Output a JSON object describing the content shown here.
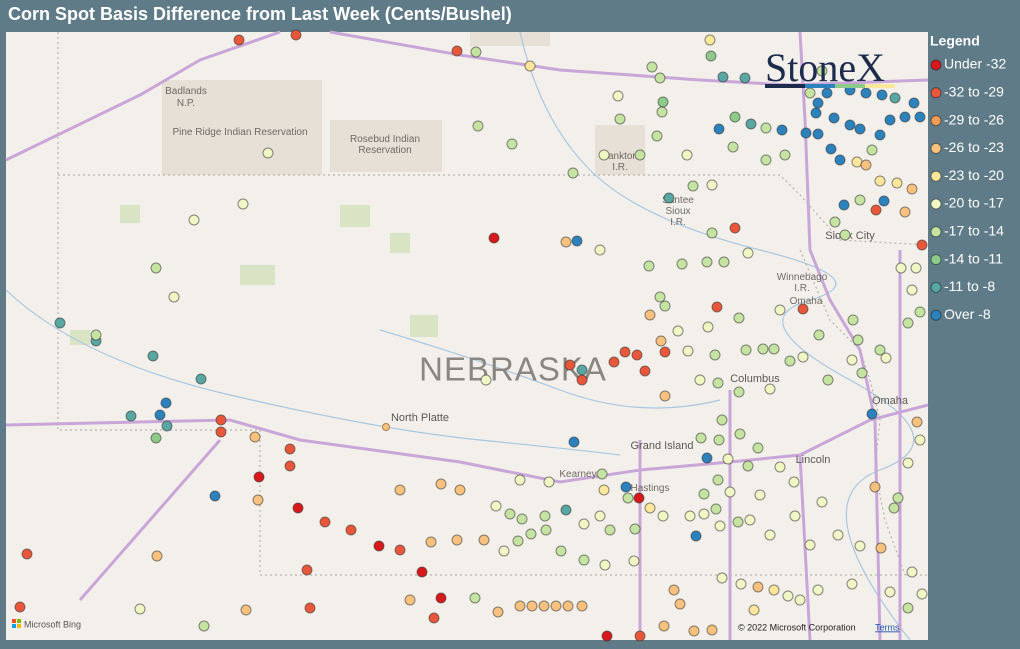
{
  "title": "Corn Spot Basis Difference from Last Week (Cents/Bushel)",
  "legend": {
    "title": "Legend",
    "items": [
      {
        "label": "Under -32",
        "color": "#d7191c"
      },
      {
        "label": "-32 to -29",
        "color": "#e9573b"
      },
      {
        "label": "-29 to -26",
        "color": "#f39a55"
      },
      {
        "label": "-26 to -23",
        "color": "#f8c27e"
      },
      {
        "label": "-23 to -20",
        "color": "#fde79b"
      },
      {
        "label": "-20 to -17",
        "color": "#f1f7c4"
      },
      {
        "label": "-17 to -14",
        "color": "#c6e4a1"
      },
      {
        "label": "-14 to -11",
        "color": "#8ecb8a"
      },
      {
        "label": "-11 to -8",
        "color": "#58a7a2"
      },
      {
        "label": "Over -8",
        "color": "#2c82bc"
      }
    ]
  },
  "logo": "StoneX",
  "map": {
    "state": "NEBRASKA",
    "places": [
      "Badlands",
      "N.P.",
      "Pine Ridge Indian Reservation",
      "Rosebud Indian",
      "Reservation",
      "Yankton",
      "I.R.",
      "Santee",
      "Sioux",
      "I.R.",
      "Sioux City",
      "Winnebago",
      "I.R.",
      "Omaha",
      "Columbus",
      "North Platte",
      "Omaha",
      "Grand Island",
      "Lincoln",
      "Kearney",
      "Hastings"
    ]
  },
  "footer": {
    "provider": "Microsoft Bing",
    "copyright": "© 2022 Microsoft Corporation",
    "terms": "Terms"
  }
}
